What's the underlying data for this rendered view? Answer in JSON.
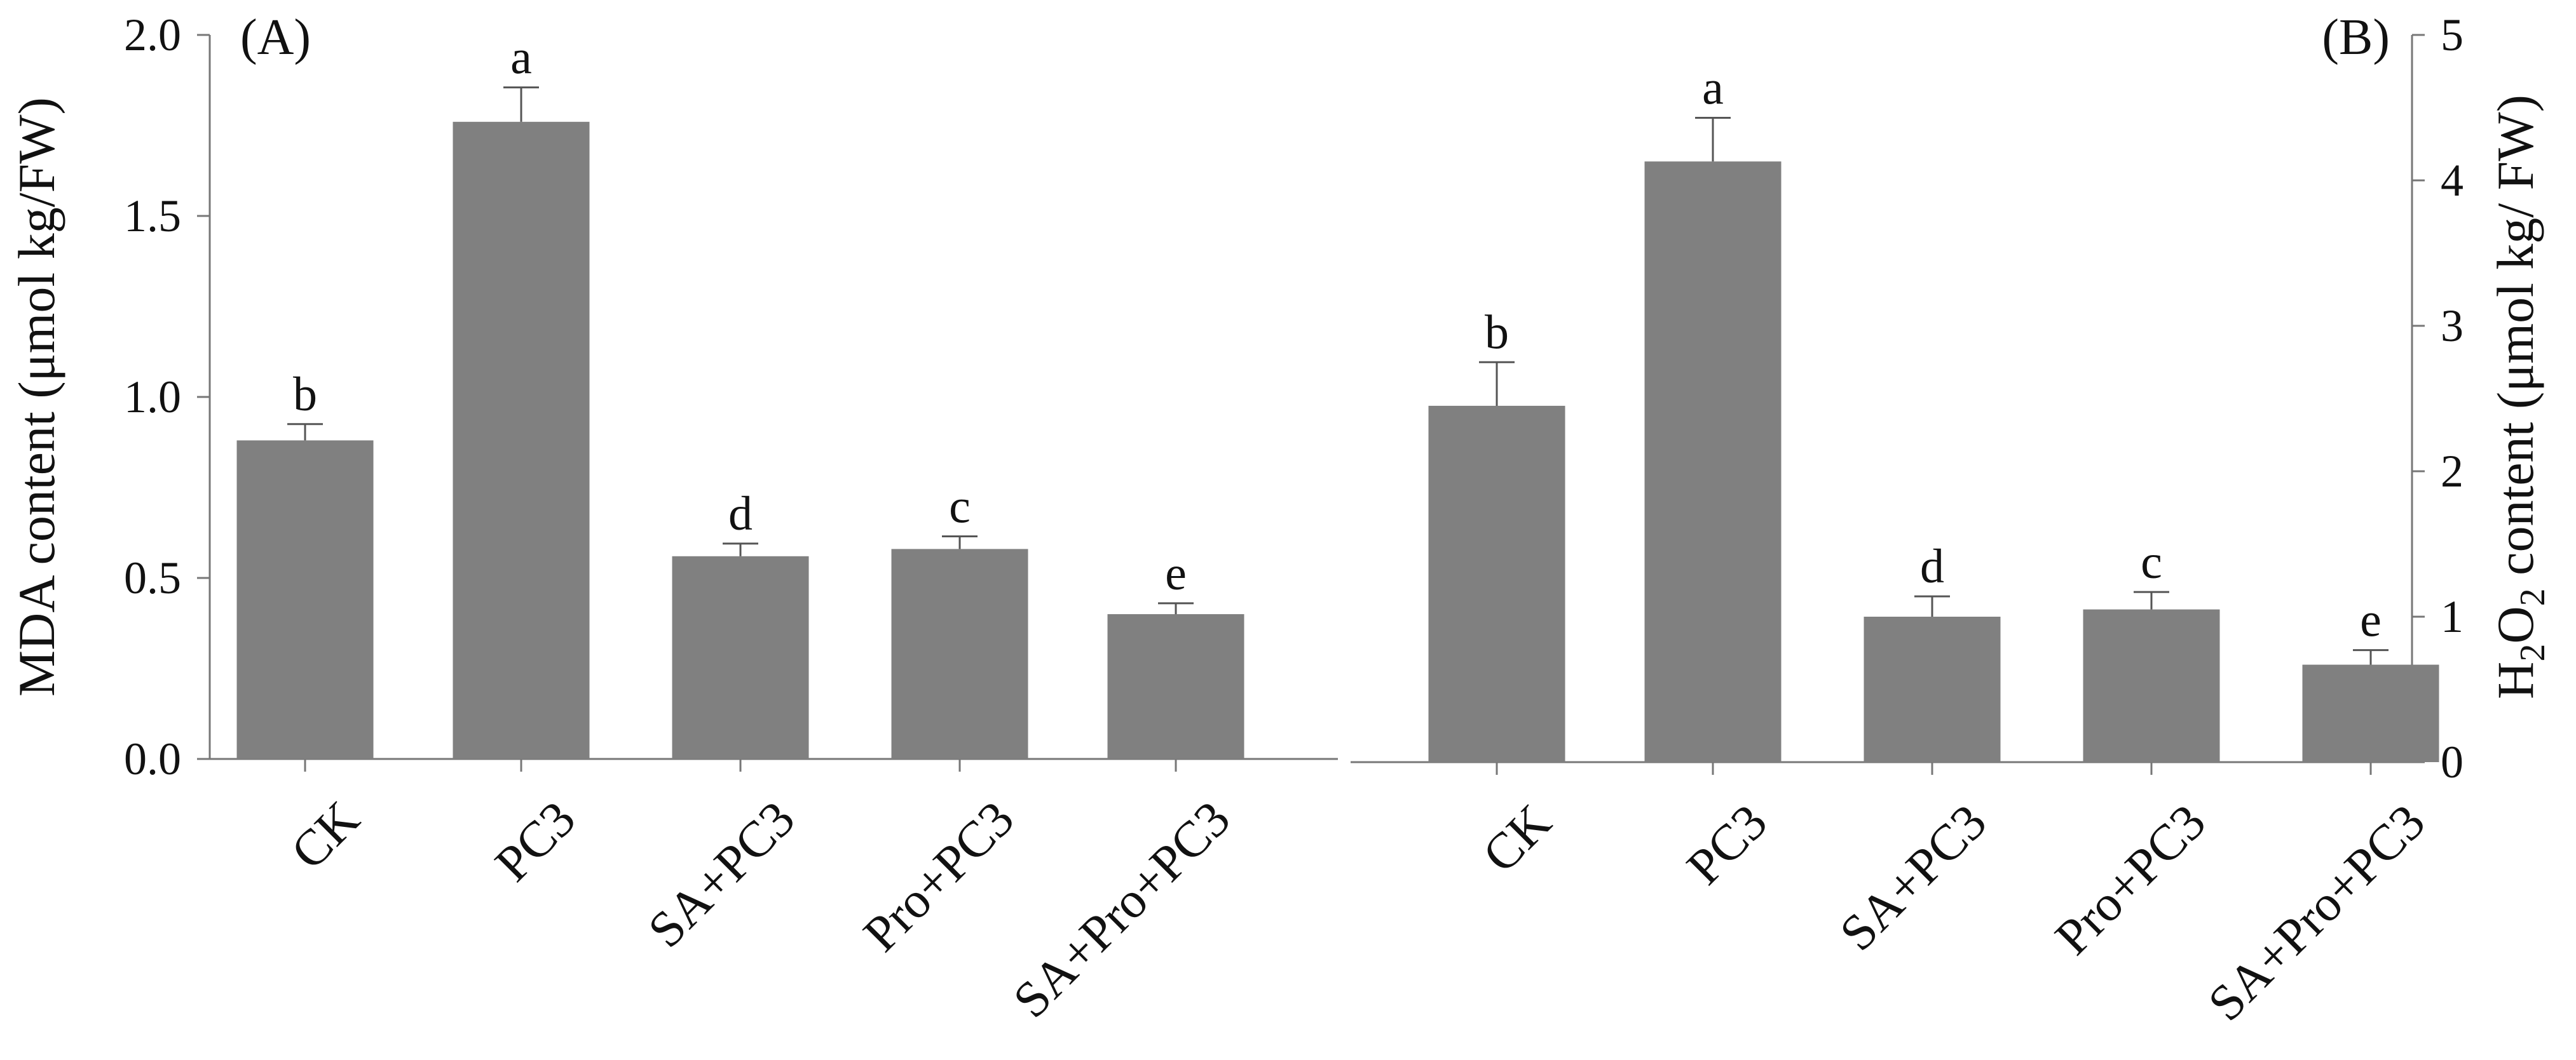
{
  "chart_data": [
    {
      "type": "bar",
      "panel_label": "(A)",
      "categories": [
        "CK",
        "PC3",
        "SA+PC3",
        "Pro+PC3",
        "SA+Pro+PC3"
      ],
      "values": [
        0.88,
        1.76,
        0.56,
        0.58,
        0.4
      ],
      "errors": [
        0.045,
        0.095,
        0.035,
        0.035,
        0.03
      ],
      "significance": [
        "b",
        "a",
        "d",
        "c",
        "e"
      ],
      "ylabel_prefix": "MDA content",
      "ylabel_units": "(μmol kg/FW)",
      "ylim": [
        0,
        2.0
      ],
      "yticks": [
        "0.0",
        "0.5",
        "1.0",
        "1.5",
        "2.0"
      ],
      "ytick_values": [
        0,
        0.5,
        1.0,
        1.5,
        2.0
      ],
      "axis_side": "left",
      "bar_color": "#808080",
      "grid": false
    },
    {
      "type": "bar",
      "panel_label": "(B)",
      "categories": [
        "CK",
        "PC3",
        "SA+PC3",
        "Pro+PC3",
        "SA+Pro+PC3"
      ],
      "values": [
        2.45,
        4.13,
        1.0,
        1.05,
        0.67
      ],
      "errors": [
        0.3,
        0.3,
        0.14,
        0.12,
        0.1
      ],
      "significance": [
        "b",
        "a",
        "d",
        "c",
        "e"
      ],
      "ylabel_prefix": "H",
      "ylabel_sub1": "2",
      "ylabel_mid": "O",
      "ylabel_sub2": "2",
      "ylabel_rest": " content (μmol kg/ FW)",
      "ylim": [
        0,
        5
      ],
      "yticks": [
        "0",
        "1",
        "2",
        "3",
        "4",
        "5"
      ],
      "ytick_values": [
        0,
        1,
        2,
        3,
        4,
        5
      ],
      "axis_side": "right",
      "bar_color": "#808080",
      "grid": false
    }
  ]
}
